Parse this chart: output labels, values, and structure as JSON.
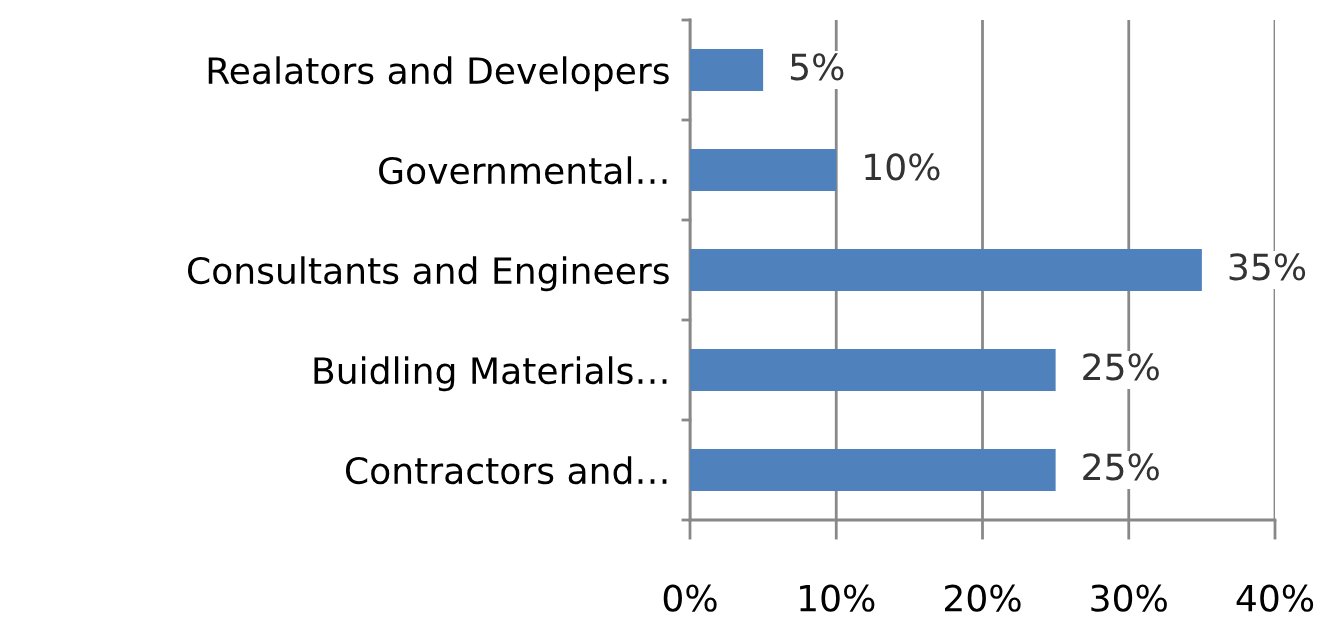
{
  "chart_data": {
    "type": "bar",
    "orientation": "horizontal",
    "categories": [
      "Realators and Developers",
      "Governmental…",
      "Consultants and Engineers",
      "Buidling Materials…",
      "Contractors and…"
    ],
    "values": [
      5,
      10,
      35,
      25,
      25
    ],
    "value_labels": [
      "5%",
      "10%",
      "35%",
      "25%",
      "25%"
    ],
    "color": "#4f81bd",
    "xlim": [
      0,
      40
    ],
    "xticks": [
      {
        "value": 0,
        "label": "0%"
      },
      {
        "value": 10,
        "label": "10%"
      },
      {
        "value": 20,
        "label": "20%"
      },
      {
        "value": 30,
        "label": "30%"
      },
      {
        "value": 40,
        "label": "40%"
      }
    ],
    "grid": "x",
    "legend": false
  }
}
